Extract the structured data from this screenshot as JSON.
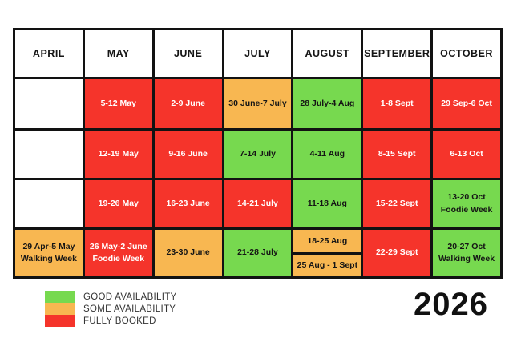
{
  "year": "2026",
  "colors": {
    "good": "#77d94f",
    "some": "#f8b751",
    "booked": "#f5342b",
    "empty": "#ffffff",
    "border": "#121212"
  },
  "legend": [
    {
      "status": "good",
      "label": "GOOD AVAILABILITY"
    },
    {
      "status": "some",
      "label": "SOME AVAILABILITY"
    },
    {
      "status": "booked",
      "label": "FULLY BOOKED"
    }
  ],
  "chart_data": {
    "type": "table",
    "title": "2026 availability calendar",
    "columns": [
      "APRIL",
      "MAY",
      "JUNE",
      "JULY",
      "AUGUST",
      "SEPTEMBER",
      "OCTOBER"
    ],
    "rows": [
      [
        {
          "line1": "",
          "line2": "",
          "status": "empty"
        },
        {
          "line1": "5-12 May",
          "line2": "",
          "status": "booked"
        },
        {
          "line1": "2-9 June",
          "line2": "",
          "status": "booked"
        },
        {
          "line1": "30 June-7 July",
          "line2": "",
          "status": "some"
        },
        {
          "line1": "28 July-4 Aug",
          "line2": "",
          "status": "good"
        },
        {
          "line1": "1-8 Sept",
          "line2": "",
          "status": "booked"
        },
        {
          "line1": "29 Sep-6 Oct",
          "line2": "",
          "status": "booked"
        }
      ],
      [
        {
          "line1": "",
          "line2": "",
          "status": "empty"
        },
        {
          "line1": "12-19 May",
          "line2": "",
          "status": "booked"
        },
        {
          "line1": "9-16 June",
          "line2": "",
          "status": "booked"
        },
        {
          "line1": "7-14 July",
          "line2": "",
          "status": "good"
        },
        {
          "line1": "4-11 Aug",
          "line2": "",
          "status": "good"
        },
        {
          "line1": "8-15 Sept",
          "line2": "",
          "status": "booked"
        },
        {
          "line1": "6-13 Oct",
          "line2": "",
          "status": "booked"
        }
      ],
      [
        {
          "line1": "",
          "line2": "",
          "status": "empty"
        },
        {
          "line1": "19-26 May",
          "line2": "",
          "status": "booked"
        },
        {
          "line1": "16-23 June",
          "line2": "",
          "status": "booked"
        },
        {
          "line1": "14-21 July",
          "line2": "",
          "status": "booked"
        },
        {
          "line1": "11-18 Aug",
          "line2": "",
          "status": "good"
        },
        {
          "line1": "15-22 Sept",
          "line2": "",
          "status": "booked"
        },
        {
          "line1": "13-20 Oct",
          "line2": "Foodie Week",
          "status": "good"
        }
      ],
      [
        {
          "line1": "29 Apr-5 May",
          "line2": "Walking Week",
          "status": "some"
        },
        {
          "line1": "26 May-2 June",
          "line2": "Foodie Week",
          "status": "booked"
        },
        {
          "line1": "23-30 June",
          "line2": "",
          "status": "some"
        },
        {
          "line1": "21-28 July",
          "line2": "",
          "status": "good"
        },
        {
          "split": [
            {
              "line1": "18-25 Aug",
              "status": "some"
            },
            {
              "line1": "25 Aug - 1 Sept",
              "status": "some"
            }
          ]
        },
        {
          "line1": "22-29 Sept",
          "line2": "",
          "status": "booked"
        },
        {
          "line1": "20-27 Oct",
          "line2": "Walking Week",
          "status": "good"
        }
      ]
    ]
  }
}
